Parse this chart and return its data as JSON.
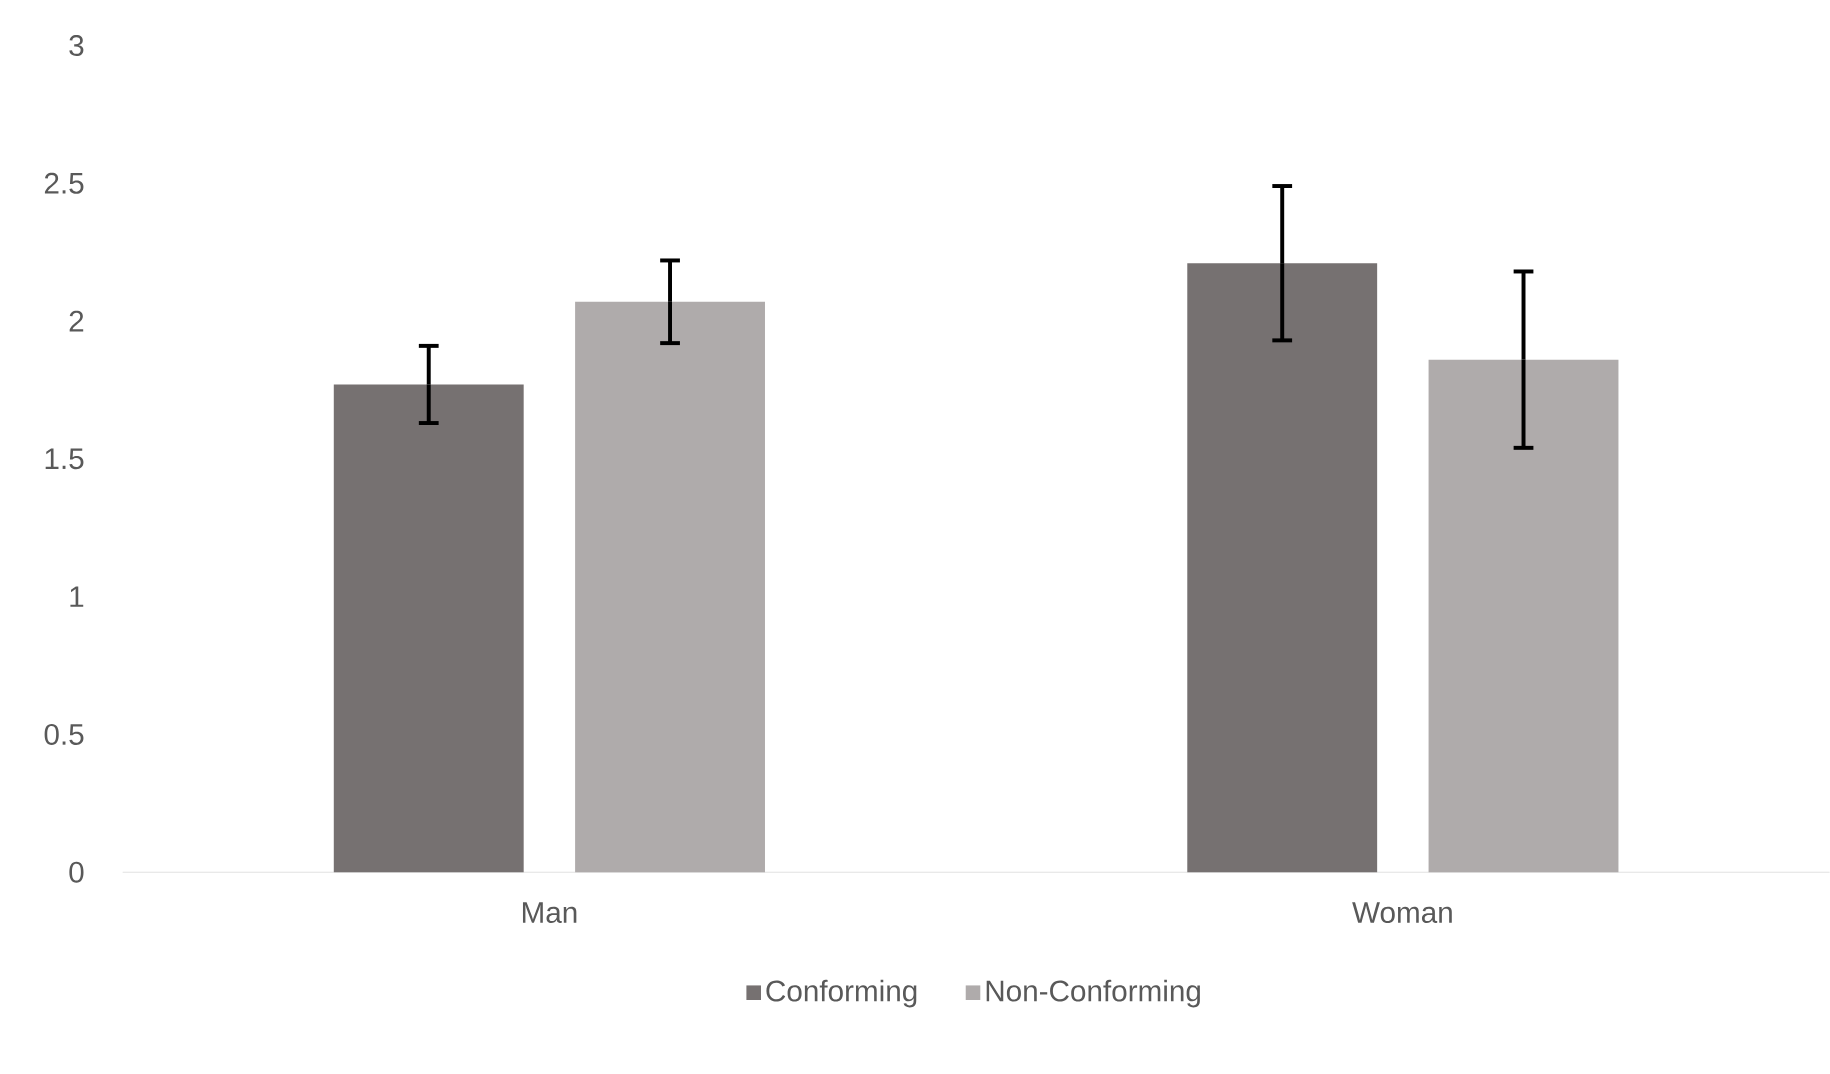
{
  "chart_data": {
    "type": "bar",
    "categories": [
      "Man",
      "Woman"
    ],
    "series": [
      {
        "name": "Conforming",
        "color": "#767171",
        "values": [
          1.77,
          2.21
        ],
        "errors": [
          0.14,
          0.28
        ]
      },
      {
        "name": "Non-Conforming",
        "color": "#afabab",
        "values": [
          2.07,
          1.86
        ],
        "errors": [
          0.15,
          0.32
        ]
      }
    ],
    "ylim": [
      0,
      3
    ],
    "yticks": [
      0,
      0.5,
      1,
      1.5,
      2,
      2.5,
      3
    ],
    "grid": false,
    "legend": "bottom"
  }
}
